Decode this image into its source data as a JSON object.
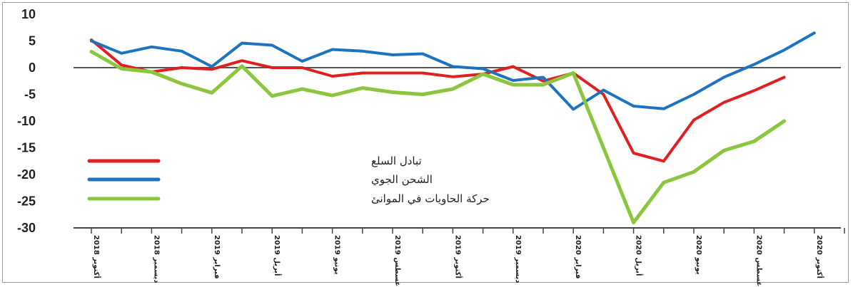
{
  "chart_data": {
    "type": "line",
    "title": "",
    "xlabel": "",
    "ylabel": "",
    "ylim": [
      -30,
      10
    ],
    "yticks": [
      "10",
      "5",
      "0",
      "-5",
      "-10",
      "-15",
      "-20",
      "-25",
      "-30"
    ],
    "ytick_values": [
      10,
      5,
      0,
      -5,
      -10,
      -15,
      -20,
      -25,
      -30
    ],
    "x_tick_labels": [
      "أكتوبر 2018",
      "ديسمبر 2018",
      "فبراير 2019",
      "أبريل 2019",
      "يونيو 2019",
      "أغسطس 2019",
      "أكتوبر 2019",
      "ديسمبر 2019",
      "فبراير 2020",
      "أبريل 2020",
      "يونيو 2020",
      "أغسطس 2020",
      "أكتوبر 2020"
    ],
    "x_tick_index": [
      0,
      2,
      4,
      6,
      8,
      10,
      12,
      14,
      16,
      18,
      20,
      22,
      24
    ],
    "zero_line": true,
    "grid": false,
    "legend_position": "bottom-left",
    "series": [
      {
        "name": "تبادل السلع",
        "color": "#e02020",
        "values": [
          5.2,
          0.5,
          -0.8,
          0.0,
          -0.3,
          1.3,
          0.0,
          0.0,
          -1.6,
          -1.0,
          -1.0,
          -1.0,
          -1.7,
          -1.2,
          0.2,
          -2.5,
          -1.0,
          -5.0,
          -16.0,
          -17.5,
          -9.8,
          -6.5,
          -4.3,
          -1.8
        ],
        "x_start": 0
      },
      {
        "name": "الشحن الجوي",
        "color": "#1e73be",
        "values": [
          5.0,
          2.7,
          3.9,
          3.1,
          0.2,
          4.6,
          4.2,
          1.2,
          3.4,
          3.1,
          2.4,
          2.6,
          0.2,
          -0.2,
          -2.4,
          -1.8,
          -7.8,
          -4.2,
          -7.2,
          -7.7,
          -5.0,
          -1.8,
          0.6,
          3.3,
          6.5
        ],
        "x_start": 0
      },
      {
        "name": "حركة الحاويات في الموانئ",
        "color": "#8cc63f",
        "values": [
          3.0,
          -0.2,
          -0.8,
          -3.0,
          -4.7,
          0.3,
          -5.3,
          -4.0,
          -5.2,
          -3.8,
          -4.6,
          -5.0,
          -4.0,
          -1.2,
          -3.2,
          -3.2,
          -1.0,
          -15.0,
          -29.0,
          -21.5,
          -19.5,
          -15.5,
          -13.8,
          -10.0
        ],
        "x_start": 0
      }
    ]
  }
}
